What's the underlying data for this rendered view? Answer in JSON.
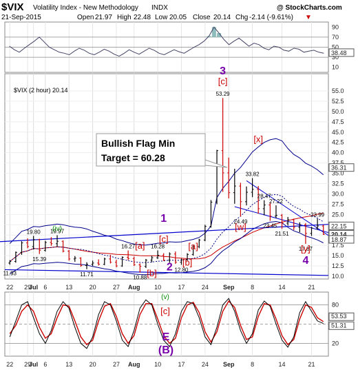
{
  "header": {
    "symbol": "$VIX",
    "name": "Volatility Index - New Methodology",
    "exchange": "INDX",
    "watermark": "@ StockCharts.com",
    "date": "21-Sep-2015",
    "open_label": "Open",
    "open": "21.97",
    "high_label": "High",
    "high": "22.48",
    "low_label": "Low",
    "low": "20.05",
    "close_label": "Close",
    "close": "20.14",
    "chg_label": "Chg",
    "chg": "-2.14 (-9.61%)",
    "chg_arrow": "▼"
  },
  "colors": {
    "price_bar": "#000000",
    "trend_line": "#0000cc",
    "envelope": "#00008b",
    "ma_red": "#cc0000",
    "ma_dotted": "#000080",
    "wave_red": "#cc0000",
    "wave_purple": "#7700aa",
    "wave_green": "#008800",
    "rsi_line": "#444466",
    "macd_red": "#cc0000",
    "macd_black": "#000000",
    "shading": "#8fbcbc"
  },
  "chart_data": [
    {
      "type": "line",
      "panel": "RSI (top)",
      "y_ticks": [
        "90",
        "70",
        "50",
        "30",
        "10"
      ],
      "y_range": [
        0,
        100
      ],
      "last_value_label": "38.48",
      "reference_lines": [
        70,
        50,
        30
      ],
      "values": [
        52,
        45,
        40,
        48,
        55,
        62,
        70,
        60,
        50,
        45,
        40,
        38,
        35,
        42,
        48,
        44,
        38,
        35,
        40,
        46,
        42,
        36,
        32,
        38,
        45,
        40,
        36,
        42,
        48,
        44,
        38,
        35,
        40,
        45,
        41,
        38,
        44,
        50,
        55,
        62,
        72,
        90,
        78,
        65,
        55,
        62,
        68,
        60,
        52,
        58,
        55,
        48,
        45,
        52,
        50,
        44,
        42,
        48,
        46,
        40,
        42,
        44,
        40,
        38
      ]
    },
    {
      "type": "bar",
      "title": "$VIX (2 hour) 20.14",
      "y_ticks": [
        "55.0",
        "52.5",
        "50.0",
        "47.5",
        "45.0",
        "42.5",
        "40.0",
        "37.5",
        "35.0",
        "32.5",
        "30.0",
        "27.5",
        "25.0",
        "22.5",
        "20.0",
        "17.5",
        "15.0",
        "12.5",
        "10.0"
      ],
      "ylim": [
        10,
        56
      ],
      "x_ticks": [
        "22",
        "29",
        "Jul",
        "6",
        "13",
        "20",
        "27",
        "Aug",
        "10",
        "17",
        "24",
        "Sep",
        "8",
        "14",
        "21"
      ],
      "last_price_label": "20.14",
      "right_labels": [
        {
          "value": 36.31,
          "text": "36.31"
        },
        {
          "value": 22.15,
          "text": "22.15"
        },
        {
          "value": 20.14,
          "text": "20.14"
        },
        {
          "value": 18.87,
          "text": "18.87"
        }
      ],
      "price_labels": [
        {
          "i": 4,
          "v": 19.8,
          "text": "19.80"
        },
        {
          "i": 8,
          "v": 19.97,
          "text": "19.97"
        },
        {
          "i": 5,
          "v": 15.39,
          "text": "15.39",
          "below": true
        },
        {
          "i": 0,
          "v": 11.93,
          "text": "11.93",
          "below": true
        },
        {
          "i": 13,
          "v": 11.71,
          "text": "11.71",
          "below": true
        },
        {
          "i": 20,
          "v": 16.27,
          "text": "16.27"
        },
        {
          "i": 25,
          "v": 16.28,
          "text": "16.28"
        },
        {
          "i": 22,
          "v": 10.88,
          "text": "10.88",
          "below": true
        },
        {
          "i": 29,
          "v": 12.8,
          "text": "12.80",
          "below": true
        },
        {
          "i": 36,
          "v": 53.29,
          "text": "53.29"
        },
        {
          "i": 39,
          "v": 24.49,
          "text": "24.49",
          "below": true
        },
        {
          "i": 41,
          "v": 33.82,
          "text": "33.82"
        },
        {
          "i": 43,
          "v": 28.47,
          "text": "28.47"
        },
        {
          "i": 45,
          "v": 27.22,
          "text": "27.22"
        },
        {
          "i": 44,
          "v": 23.45,
          "text": "23.45",
          "below": true
        },
        {
          "i": 46,
          "v": 21.51,
          "text": "21.51",
          "below": true
        },
        {
          "i": 52,
          "v": 23.99,
          "text": "23.99"
        },
        {
          "i": 50,
          "v": 17.87,
          "text": "17.87",
          "below": true
        }
      ],
      "wave_labels": [
        {
          "text": "3",
          "style": "purple",
          "i": 36,
          "v": 59.0
        },
        {
          "text": "[c]",
          "style": "red",
          "i": 36,
          "v": 56.6
        },
        {
          "text": "[x]",
          "style": "red",
          "i": 42,
          "v": 42.5
        },
        {
          "text": "1",
          "style": "purple",
          "i": 26,
          "v": 23.2
        },
        {
          "text": "(iv)",
          "style": "green",
          "i": 8,
          "v": 21.0
        },
        {
          "text": "[c]",
          "style": "red",
          "i": 26,
          "v": 18.3
        },
        {
          "text": "[a]",
          "style": "red",
          "i": 22,
          "v": 16.7
        },
        {
          "text": "[a]",
          "style": "red",
          "i": 31,
          "v": 16.5
        },
        {
          "text": "[w]",
          "style": "red",
          "i": 39,
          "v": 21.2
        },
        {
          "text": "[b]",
          "style": "red",
          "i": 30,
          "v": 12.6
        },
        {
          "text": "2",
          "style": "purple",
          "i": 27,
          "v": 11.4
        },
        {
          "text": "[b]",
          "style": "red",
          "i": 24,
          "v": 10.0
        },
        {
          "text": "[y]",
          "style": "red",
          "i": 50,
          "v": 15.9
        },
        {
          "text": "4",
          "style": "purple",
          "i": 50,
          "v": 13.0
        }
      ],
      "annotation": {
        "line1": "Bullish Flag Min",
        "line2": "Target = 60.28"
      },
      "ohlc": [
        [
          13.2,
          13.9,
          12.8,
          13.6
        ],
        [
          13.6,
          16.0,
          13.3,
          15.8
        ],
        [
          15.8,
          18.5,
          15.2,
          18.1
        ],
        [
          18.1,
          19.2,
          16.8,
          17.2
        ],
        [
          17.2,
          19.8,
          16.5,
          18.9
        ],
        [
          18.9,
          19.1,
          15.4,
          16.3
        ],
        [
          16.3,
          18.6,
          16.0,
          18.2
        ],
        [
          18.2,
          19.5,
          17.4,
          17.9
        ],
        [
          17.9,
          19.97,
          17.2,
          18.5
        ],
        [
          18.5,
          18.7,
          15.8,
          16.1
        ],
        [
          16.1,
          16.4,
          13.8,
          14.2
        ],
        [
          14.2,
          14.9,
          13.5,
          14.4
        ],
        [
          14.4,
          14.6,
          12.3,
          12.6
        ],
        [
          12.6,
          13.4,
          11.71,
          12.9
        ],
        [
          12.9,
          13.8,
          12.5,
          13.2
        ],
        [
          13.2,
          14.1,
          12.6,
          12.9
        ],
        [
          12.9,
          14.5,
          12.7,
          14.2
        ],
        [
          14.2,
          15.2,
          13.1,
          13.4
        ],
        [
          13.4,
          14.0,
          12.2,
          12.5
        ],
        [
          12.5,
          14.8,
          12.3,
          14.6
        ],
        [
          14.6,
          16.27,
          13.9,
          14.3
        ],
        [
          14.3,
          14.8,
          12.5,
          12.8
        ],
        [
          12.8,
          13.1,
          10.88,
          12.4
        ],
        [
          12.4,
          14.2,
          12.0,
          13.9
        ],
        [
          13.9,
          15.0,
          13.4,
          14.5
        ],
        [
          14.5,
          16.28,
          14.2,
          15.1
        ],
        [
          15.1,
          15.6,
          13.7,
          13.9
        ],
        [
          13.9,
          15.8,
          13.3,
          15.4
        ],
        [
          15.4,
          16.0,
          13.0,
          13.4
        ],
        [
          13.4,
          14.3,
          12.8,
          14.0
        ],
        [
          14.0,
          15.6,
          13.8,
          15.3
        ],
        [
          15.3,
          17.5,
          15.0,
          17.2
        ],
        [
          17.2,
          19.1,
          16.8,
          18.8
        ],
        [
          18.8,
          22.5,
          18.5,
          22.1
        ],
        [
          22.1,
          28.5,
          21.8,
          28.0
        ],
        [
          28.0,
          40.7,
          27.5,
          40.5
        ],
        [
          40.5,
          53.29,
          30.5,
          35.1
        ],
        [
          35.1,
          38.8,
          28.9,
          30.3
        ],
        [
          30.3,
          36.1,
          27.6,
          31.9
        ],
        [
          31.9,
          32.7,
          24.49,
          28.1
        ],
        [
          28.1,
          31.8,
          27.2,
          30.4
        ],
        [
          30.4,
          33.82,
          29.2,
          31.1
        ],
        [
          31.1,
          31.9,
          25.2,
          26.4
        ],
        [
          26.4,
          28.47,
          24.8,
          27.3
        ],
        [
          27.3,
          27.9,
          23.45,
          24.6
        ],
        [
          24.6,
          27.22,
          24.1,
          24.8
        ],
        [
          24.8,
          25.1,
          21.51,
          22.9
        ],
        [
          22.9,
          24.4,
          22.3,
          23.7
        ],
        [
          23.7,
          24.0,
          21.2,
          21.9
        ],
        [
          21.9,
          23.1,
          20.7,
          22.5
        ],
        [
          22.5,
          22.9,
          17.87,
          20.4
        ],
        [
          20.4,
          22.0,
          19.8,
          21.7
        ],
        [
          21.7,
          23.99,
          21.3,
          22.2
        ],
        [
          22.2,
          22.48,
          20.05,
          20.14
        ]
      ]
    },
    {
      "type": "line",
      "panel": "Stochastic (bottom)",
      "y_ticks": [
        "80",
        "50",
        "20"
      ],
      "y_range": [
        0,
        100
      ],
      "last_value_labels": [
        "53.53",
        "51.31"
      ],
      "wave_labels": [
        {
          "text": "(v)",
          "style": "green"
        },
        {
          "text": "[c]",
          "style": "red"
        },
        {
          "text": "E",
          "style": "purple"
        },
        {
          "text": "(B)",
          "style": "black"
        }
      ],
      "k": [
        30,
        55,
        80,
        85,
        60,
        35,
        20,
        40,
        70,
        85,
        75,
        45,
        20,
        12,
        30,
        65,
        85,
        80,
        55,
        25,
        15,
        40,
        75,
        88,
        80,
        50,
        25,
        15,
        35,
        70,
        85,
        82,
        60,
        30,
        18,
        45,
        80,
        90,
        70,
        40,
        20,
        35,
        72,
        86,
        78,
        50,
        25,
        14,
        30,
        68,
        85,
        70,
        55,
        51
      ],
      "d": [
        35,
        48,
        70,
        80,
        70,
        45,
        28,
        35,
        60,
        80,
        78,
        55,
        30,
        18,
        25,
        55,
        78,
        82,
        62,
        35,
        20,
        32,
        65,
        82,
        82,
        58,
        32,
        20,
        28,
        60,
        80,
        84,
        68,
        38,
        22,
        38,
        70,
        86,
        76,
        48,
        26,
        30,
        62,
        82,
        80,
        58,
        32,
        18,
        26,
        58,
        80,
        76,
        60,
        54
      ]
    }
  ]
}
